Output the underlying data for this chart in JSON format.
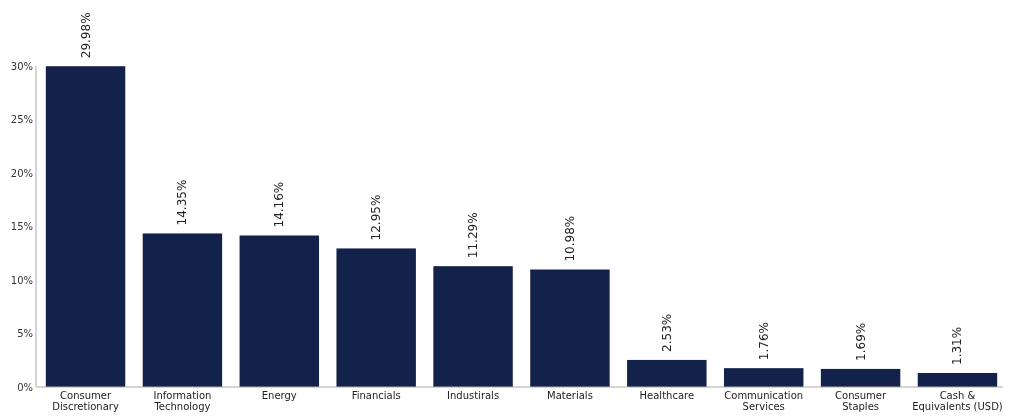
{
  "chart_data": {
    "type": "bar",
    "categories": [
      "Consumer Discretionary",
      "Information Technology",
      "Energy",
      "Financials",
      "Industirals",
      "Materials",
      "Healthcare",
      "Communication Services",
      "Consumer Staples",
      "Cash & Equivalents (USD)"
    ],
    "values": [
      29.98,
      14.35,
      14.16,
      12.95,
      11.29,
      10.98,
      2.53,
      1.76,
      1.69,
      1.31
    ],
    "value_labels": [
      "29.98%",
      "14.35%",
      "14.16%",
      "12.95%",
      "11.29%",
      "10.98%",
      "2.53%",
      "1.76%",
      "1.69%",
      "1.31%"
    ],
    "color": "#13224a",
    "ylim": [
      0,
      30
    ],
    "yticks": [
      {
        "value": 0,
        "label": "0%"
      },
      {
        "value": 5,
        "label": "5%"
      },
      {
        "value": 10,
        "label": "10%"
      },
      {
        "value": 15,
        "label": "15%"
      },
      {
        "value": 20,
        "label": "20%"
      },
      {
        "value": 25,
        "label": "25%"
      },
      {
        "value": 30,
        "label": "30%"
      }
    ],
    "grid": false
  }
}
